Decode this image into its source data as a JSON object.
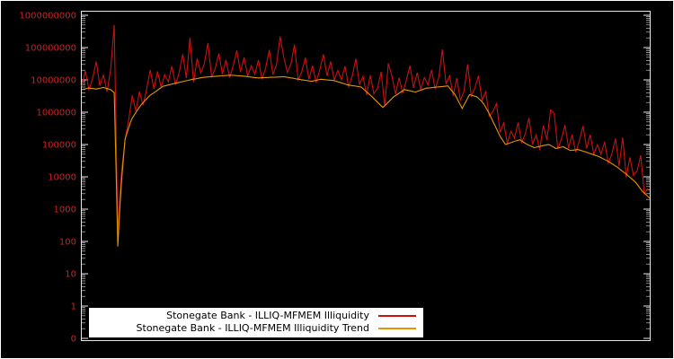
{
  "chart_data": {
    "type": "line",
    "title": "",
    "xlabel": "",
    "ylabel": "",
    "background_color": "#000000",
    "frame_color": "#e6e6e6",
    "legend": {
      "position": "bottom-center-inside",
      "background": "#ffffff",
      "text_color": "#000000"
    },
    "n_points": 630,
    "y_axis": {
      "scale": "log10",
      "top_log": 9,
      "bottom_log": -1,
      "label_color": "#cc2222",
      "tick_labels": [
        "1000000000",
        "100000000",
        "10000000",
        "1000000",
        "100000",
        "10000",
        "1000",
        "100",
        "10",
        "1",
        "0"
      ]
    },
    "series": [
      {
        "name": "Stonegate Bank - ILLIQ-MFMEM Illiquidity",
        "color": "#cc1111",
        "derived_from_trend": true,
        "noise_step_x": 4,
        "noise_log10": [
          0.1,
          0.55,
          -0.05,
          0.3,
          0.85,
          0.08,
          0.38,
          -0.1,
          0.62,
          2.1,
          0.4,
          0.3,
          -0.02,
          0.25,
          0.7,
          0.05,
          0.48,
          -0.08,
          0.3,
          0.78,
          0.12,
          0.58,
          0.02,
          0.35,
          0.1,
          0.55,
          -0.05,
          0.3,
          0.85,
          0.08,
          1.3,
          -0.1,
          0.62,
          0.15,
          0.42,
          1.05,
          -0.02,
          0.25,
          0.7,
          0.05,
          0.48,
          -0.08,
          0.3,
          0.78,
          0.12,
          0.58,
          0.02,
          0.35,
          0.1,
          0.55,
          -0.05,
          0.3,
          0.85,
          0.08,
          0.38,
          1.25,
          0.62,
          0.15,
          0.42,
          1.05,
          -0.02,
          0.25,
          0.7,
          0.05,
          0.48,
          -0.08,
          0.3,
          0.78,
          0.12,
          0.58,
          0.02,
          0.35,
          0.1,
          0.55,
          -0.05,
          0.3,
          0.85,
          0.08,
          0.38,
          -0.1,
          0.62,
          0.15,
          0.42,
          1.05,
          -0.02,
          1.2,
          0.7,
          0.05,
          0.48,
          -0.08,
          0.3,
          0.78,
          0.12,
          0.58,
          0.02,
          0.35,
          0.1,
          0.55,
          -0.05,
          0.3,
          1.15,
          0.08,
          0.38,
          -0.1,
          0.62,
          0.15,
          0.42,
          1.05,
          -0.02,
          0.25,
          0.7,
          0.05,
          0.48,
          -0.08,
          0.3,
          0.78,
          0.12,
          0.58,
          0.02,
          0.35,
          0.1,
          0.55,
          -0.05,
          0.3,
          0.85,
          0.08,
          0.38,
          -0.1,
          0.62,
          0.15,
          1.1,
          1.05,
          -0.02,
          0.25,
          0.7,
          0.05,
          0.48,
          -0.08,
          0.3,
          0.78,
          0.12,
          0.58,
          0.02,
          0.35,
          0.1,
          0.55,
          -0.05,
          0.3,
          0.85,
          0.08,
          1.05,
          -0.1,
          0.62,
          0.15,
          0.42,
          1.05,
          -0.02,
          0.25
        ]
      },
      {
        "name": "Stonegate Bank - ILLIQ-MFMEM Illiquidity Trend",
        "color": "#e69500",
        "anchors": [
          [
            0,
            5000000.0
          ],
          [
            8,
            5600000.0
          ],
          [
            16,
            5200000.0
          ],
          [
            24,
            5800000.0
          ],
          [
            32,
            5000000.0
          ],
          [
            36,
            4000000.0
          ],
          [
            38,
            20000.0
          ],
          [
            40,
            70
          ],
          [
            43,
            3000.0
          ],
          [
            48,
            150000.0
          ],
          [
            55,
            600000.0
          ],
          [
            65,
            1600000.0
          ],
          [
            75,
            3200000.0
          ],
          [
            90,
            6300000.0
          ],
          [
            105,
            8000000.0
          ],
          [
            120,
            10000000.0
          ],
          [
            135,
            12000000.0
          ],
          [
            150,
            13000000.0
          ],
          [
            165,
            14000000.0
          ],
          [
            180,
            13000000.0
          ],
          [
            195,
            11500000.0
          ],
          [
            210,
            12000000.0
          ],
          [
            225,
            12500000.0
          ],
          [
            240,
            10500000.0
          ],
          [
            255,
            9000000.0
          ],
          [
            265,
            10500000.0
          ],
          [
            280,
            9500000.0
          ],
          [
            295,
            7000000.0
          ],
          [
            310,
            6000000.0
          ],
          [
            322,
            3000000.0
          ],
          [
            334,
            1400000.0
          ],
          [
            346,
            3000000.0
          ],
          [
            358,
            5000000.0
          ],
          [
            370,
            4200000.0
          ],
          [
            382,
            5500000.0
          ],
          [
            394,
            6000000.0
          ],
          [
            406,
            6500000.0
          ],
          [
            414,
            3500000.0
          ],
          [
            422,
            1300000.0
          ],
          [
            430,
            3500000.0
          ],
          [
            438,
            3000000.0
          ],
          [
            445,
            2000000.0
          ],
          [
            452,
            900000.0
          ],
          [
            458,
            400000.0
          ],
          [
            464,
            180000.0
          ],
          [
            470,
            100000.0
          ],
          [
            478,
            120000.0
          ],
          [
            486,
            140000.0
          ],
          [
            494,
            100000.0
          ],
          [
            502,
            80000.0
          ],
          [
            510,
            90000.0
          ],
          [
            518,
            100000.0
          ],
          [
            526,
            75000.0
          ],
          [
            534,
            85000.0
          ],
          [
            542,
            65000.0
          ],
          [
            550,
            70000.0
          ],
          [
            558,
            60000.0
          ],
          [
            566,
            50000.0
          ],
          [
            574,
            42000.0
          ],
          [
            584,
            30000.0
          ],
          [
            594,
            20000.0
          ],
          [
            604,
            12000.0
          ],
          [
            614,
            7000.0
          ],
          [
            622,
            3500.0
          ],
          [
            630,
            2200.0
          ]
        ]
      }
    ]
  }
}
